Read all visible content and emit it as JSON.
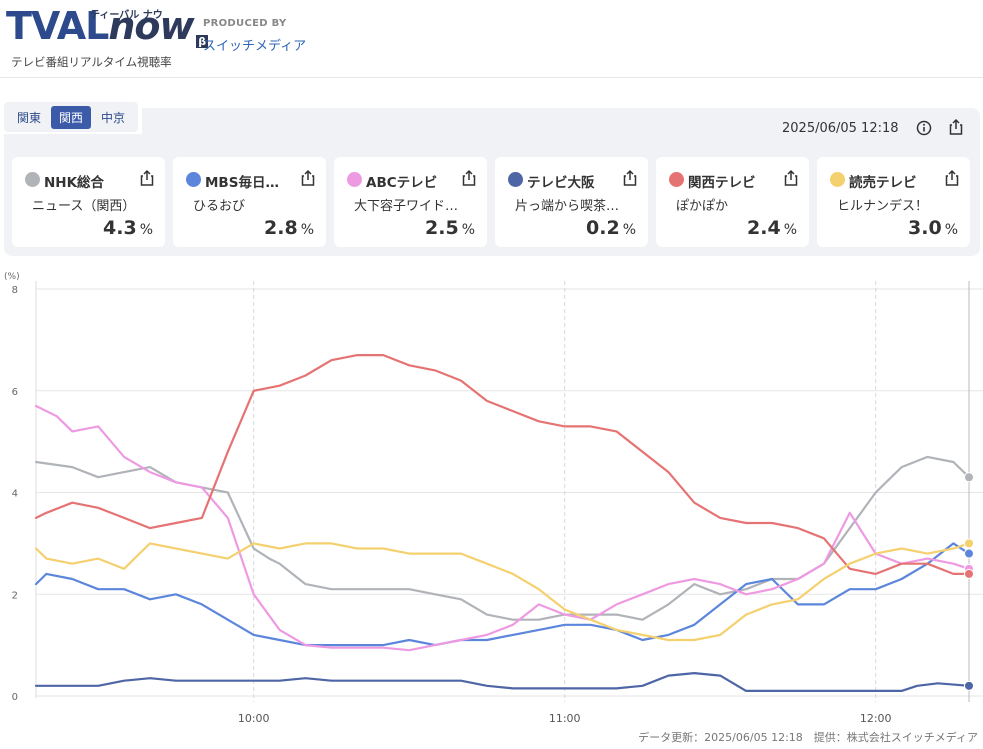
{
  "header": {
    "logo_text_a": "TVAL",
    "logo_text_b": "now",
    "logo_kana": "ティーバル ナウ",
    "logo_beta": "β",
    "logo_subtitle": "テレビ番組リアルタイム視聴率",
    "produced_by": "PRODUCED BY",
    "producer": "スイッチメディア"
  },
  "regions": [
    "関東",
    "関西",
    "中京"
  ],
  "active_region": "関西",
  "timestamp": "2025/06/05 12:18",
  "channels": [
    {
      "name": "NHK総合",
      "program": "ニュース（関西）",
      "rating": "4.3",
      "unit": "%",
      "color": "#b0b3b8"
    },
    {
      "name": "MBS毎日…",
      "program": "ひるおび",
      "rating": "2.8",
      "unit": "%",
      "color": "#5b86db"
    },
    {
      "name": "ABCテレビ",
      "program": "大下容子ワイド…",
      "rating": "2.5",
      "unit": "%",
      "color": "#ee9ae3"
    },
    {
      "name": "テレビ大阪",
      "program": "片っ端から喫茶…",
      "rating": "0.2",
      "unit": "%",
      "color": "#4e65a6"
    },
    {
      "name": "関西テレビ",
      "program": "ぽかぽか",
      "rating": "2.4",
      "unit": "%",
      "color": "#e67373"
    },
    {
      "name": "読売テレビ",
      "program": "ヒルナンデス！",
      "rating": "3.0",
      "unit": "%",
      "color": "#f4d06e"
    }
  ],
  "chart_data": {
    "type": "line",
    "ylabel": "(%)",
    "ylim": [
      0,
      8
    ],
    "yticks": [
      "0",
      "2",
      "4",
      "6",
      "8"
    ],
    "xlim": [
      "09:18",
      "12:18"
    ],
    "xticks": [
      "10:00",
      "11:00",
      "12:00"
    ],
    "grid": true,
    "series": [
      {
        "name": "NHK総合",
        "color": "#b0b3b8",
        "points": [
          [
            "09:18",
            4.6
          ],
          [
            "09:25",
            4.5
          ],
          [
            "09:30",
            4.3
          ],
          [
            "09:35",
            4.4
          ],
          [
            "09:40",
            4.5
          ],
          [
            "09:45",
            4.2
          ],
          [
            "09:50",
            4.1
          ],
          [
            "09:55",
            4.0
          ],
          [
            "10:00",
            2.9
          ],
          [
            "10:03",
            2.7
          ],
          [
            "10:05",
            2.6
          ],
          [
            "10:10",
            2.2
          ],
          [
            "10:15",
            2.1
          ],
          [
            "10:20",
            2.1
          ],
          [
            "10:25",
            2.1
          ],
          [
            "10:30",
            2.1
          ],
          [
            "10:35",
            2.0
          ],
          [
            "10:40",
            1.9
          ],
          [
            "10:45",
            1.6
          ],
          [
            "10:50",
            1.5
          ],
          [
            "10:55",
            1.5
          ],
          [
            "11:00",
            1.6
          ],
          [
            "11:05",
            1.6
          ],
          [
            "11:10",
            1.6
          ],
          [
            "11:15",
            1.5
          ],
          [
            "11:20",
            1.8
          ],
          [
            "11:25",
            2.2
          ],
          [
            "11:30",
            2.0
          ],
          [
            "11:35",
            2.1
          ],
          [
            "11:40",
            2.3
          ],
          [
            "11:45",
            2.3
          ],
          [
            "11:50",
            2.6
          ],
          [
            "11:55",
            3.3
          ],
          [
            "12:00",
            4.0
          ],
          [
            "12:05",
            4.5
          ],
          [
            "12:10",
            4.7
          ],
          [
            "12:15",
            4.6
          ],
          [
            "12:18",
            4.3
          ]
        ]
      },
      {
        "name": "MBS毎日…",
        "color": "#5b86db",
        "points": [
          [
            "09:18",
            2.2
          ],
          [
            "09:20",
            2.4
          ],
          [
            "09:25",
            2.3
          ],
          [
            "09:30",
            2.1
          ],
          [
            "09:35",
            2.1
          ],
          [
            "09:40",
            1.9
          ],
          [
            "09:45",
            2.0
          ],
          [
            "09:50",
            1.8
          ],
          [
            "09:55",
            1.5
          ],
          [
            "10:00",
            1.2
          ],
          [
            "10:05",
            1.1
          ],
          [
            "10:10",
            1.0
          ],
          [
            "10:15",
            1.0
          ],
          [
            "10:20",
            1.0
          ],
          [
            "10:25",
            1.0
          ],
          [
            "10:30",
            1.1
          ],
          [
            "10:35",
            1.0
          ],
          [
            "10:40",
            1.1
          ],
          [
            "10:45",
            1.1
          ],
          [
            "10:50",
            1.2
          ],
          [
            "10:55",
            1.3
          ],
          [
            "11:00",
            1.4
          ],
          [
            "11:05",
            1.4
          ],
          [
            "11:10",
            1.3
          ],
          [
            "11:15",
            1.1
          ],
          [
            "11:20",
            1.2
          ],
          [
            "11:25",
            1.4
          ],
          [
            "11:30",
            1.8
          ],
          [
            "11:35",
            2.2
          ],
          [
            "11:40",
            2.3
          ],
          [
            "11:45",
            1.8
          ],
          [
            "11:50",
            1.8
          ],
          [
            "11:55",
            2.1
          ],
          [
            "12:00",
            2.1
          ],
          [
            "12:05",
            2.3
          ],
          [
            "12:10",
            2.6
          ],
          [
            "12:15",
            3.0
          ],
          [
            "12:18",
            2.8
          ]
        ]
      },
      {
        "name": "ABCテレビ",
        "color": "#ee9ae3",
        "points": [
          [
            "09:18",
            5.7
          ],
          [
            "09:22",
            5.5
          ],
          [
            "09:25",
            5.2
          ],
          [
            "09:30",
            5.3
          ],
          [
            "09:35",
            4.7
          ],
          [
            "09:40",
            4.4
          ],
          [
            "09:45",
            4.2
          ],
          [
            "09:50",
            4.1
          ],
          [
            "09:55",
            3.5
          ],
          [
            "10:00",
            2.0
          ],
          [
            "10:05",
            1.3
          ],
          [
            "10:10",
            1.0
          ],
          [
            "10:15",
            0.95
          ],
          [
            "10:20",
            0.95
          ],
          [
            "10:25",
            0.95
          ],
          [
            "10:30",
            0.9
          ],
          [
            "10:35",
            1.0
          ],
          [
            "10:40",
            1.1
          ],
          [
            "10:45",
            1.2
          ],
          [
            "10:50",
            1.4
          ],
          [
            "10:55",
            1.8
          ],
          [
            "11:00",
            1.6
          ],
          [
            "11:05",
            1.5
          ],
          [
            "11:10",
            1.8
          ],
          [
            "11:15",
            2.0
          ],
          [
            "11:20",
            2.2
          ],
          [
            "11:25",
            2.3
          ],
          [
            "11:30",
            2.2
          ],
          [
            "11:35",
            2.0
          ],
          [
            "11:40",
            2.1
          ],
          [
            "11:45",
            2.3
          ],
          [
            "11:50",
            2.6
          ],
          [
            "11:55",
            3.6
          ],
          [
            "12:00",
            2.8
          ],
          [
            "12:05",
            2.6
          ],
          [
            "12:10",
            2.7
          ],
          [
            "12:15",
            2.6
          ],
          [
            "12:18",
            2.5
          ]
        ]
      },
      {
        "name": "テレビ大阪",
        "color": "#4e65a6",
        "points": [
          [
            "09:18",
            0.2
          ],
          [
            "09:30",
            0.2
          ],
          [
            "09:35",
            0.3
          ],
          [
            "09:40",
            0.35
          ],
          [
            "09:45",
            0.3
          ],
          [
            "09:50",
            0.3
          ],
          [
            "09:55",
            0.3
          ],
          [
            "10:00",
            0.3
          ],
          [
            "10:05",
            0.3
          ],
          [
            "10:10",
            0.35
          ],
          [
            "10:15",
            0.3
          ],
          [
            "10:20",
            0.3
          ],
          [
            "10:25",
            0.3
          ],
          [
            "10:30",
            0.3
          ],
          [
            "10:35",
            0.3
          ],
          [
            "10:40",
            0.3
          ],
          [
            "10:45",
            0.2
          ],
          [
            "10:50",
            0.15
          ],
          [
            "11:00",
            0.15
          ],
          [
            "11:10",
            0.15
          ],
          [
            "11:15",
            0.2
          ],
          [
            "11:20",
            0.4
          ],
          [
            "11:25",
            0.45
          ],
          [
            "11:30",
            0.4
          ],
          [
            "11:35",
            0.1
          ],
          [
            "11:45",
            0.1
          ],
          [
            "11:55",
            0.1
          ],
          [
            "12:05",
            0.1
          ],
          [
            "12:08",
            0.2
          ],
          [
            "12:12",
            0.25
          ],
          [
            "12:18",
            0.2
          ]
        ]
      },
      {
        "name": "関西テレビ",
        "color": "#e67373",
        "points": [
          [
            "09:18",
            3.5
          ],
          [
            "09:20",
            3.6
          ],
          [
            "09:25",
            3.8
          ],
          [
            "09:30",
            3.7
          ],
          [
            "09:35",
            3.5
          ],
          [
            "09:40",
            3.3
          ],
          [
            "09:45",
            3.4
          ],
          [
            "09:50",
            3.5
          ],
          [
            "09:55",
            4.8
          ],
          [
            "10:00",
            6.0
          ],
          [
            "10:05",
            6.1
          ],
          [
            "10:10",
            6.3
          ],
          [
            "10:15",
            6.6
          ],
          [
            "10:20",
            6.7
          ],
          [
            "10:25",
            6.7
          ],
          [
            "10:30",
            6.5
          ],
          [
            "10:35",
            6.4
          ],
          [
            "10:40",
            6.2
          ],
          [
            "10:45",
            5.8
          ],
          [
            "10:50",
            5.6
          ],
          [
            "10:55",
            5.4
          ],
          [
            "11:00",
            5.3
          ],
          [
            "11:05",
            5.3
          ],
          [
            "11:10",
            5.2
          ],
          [
            "11:15",
            4.8
          ],
          [
            "11:20",
            4.4
          ],
          [
            "11:25",
            3.8
          ],
          [
            "11:30",
            3.5
          ],
          [
            "11:35",
            3.4
          ],
          [
            "11:40",
            3.4
          ],
          [
            "11:45",
            3.3
          ],
          [
            "11:50",
            3.1
          ],
          [
            "11:55",
            2.5
          ],
          [
            "12:00",
            2.4
          ],
          [
            "12:05",
            2.6
          ],
          [
            "12:10",
            2.6
          ],
          [
            "12:15",
            2.4
          ],
          [
            "12:18",
            2.4
          ]
        ]
      },
      {
        "name": "読売テレビ",
        "color": "#f4d06e",
        "points": [
          [
            "09:18",
            2.9
          ],
          [
            "09:20",
            2.7
          ],
          [
            "09:25",
            2.6
          ],
          [
            "09:30",
            2.7
          ],
          [
            "09:35",
            2.5
          ],
          [
            "09:40",
            3.0
          ],
          [
            "09:45",
            2.9
          ],
          [
            "09:50",
            2.8
          ],
          [
            "09:55",
            2.7
          ],
          [
            "10:00",
            3.0
          ],
          [
            "10:05",
            2.9
          ],
          [
            "10:10",
            3.0
          ],
          [
            "10:15",
            3.0
          ],
          [
            "10:20",
            2.9
          ],
          [
            "10:25",
            2.9
          ],
          [
            "10:30",
            2.8
          ],
          [
            "10:35",
            2.8
          ],
          [
            "10:40",
            2.8
          ],
          [
            "10:45",
            2.6
          ],
          [
            "10:50",
            2.4
          ],
          [
            "10:55",
            2.1
          ],
          [
            "11:00",
            1.7
          ],
          [
            "11:05",
            1.5
          ],
          [
            "11:10",
            1.3
          ],
          [
            "11:15",
            1.2
          ],
          [
            "11:20",
            1.1
          ],
          [
            "11:25",
            1.1
          ],
          [
            "11:30",
            1.2
          ],
          [
            "11:35",
            1.6
          ],
          [
            "11:40",
            1.8
          ],
          [
            "11:45",
            1.9
          ],
          [
            "11:50",
            2.3
          ],
          [
            "11:55",
            2.6
          ],
          [
            "12:00",
            2.8
          ],
          [
            "12:05",
            2.9
          ],
          [
            "12:10",
            2.8
          ],
          [
            "12:15",
            2.9
          ],
          [
            "12:18",
            3.0
          ]
        ]
      }
    ]
  },
  "footer": "データ更新：2025/06/05 12:18　提供：株式会社スイッチメディア"
}
